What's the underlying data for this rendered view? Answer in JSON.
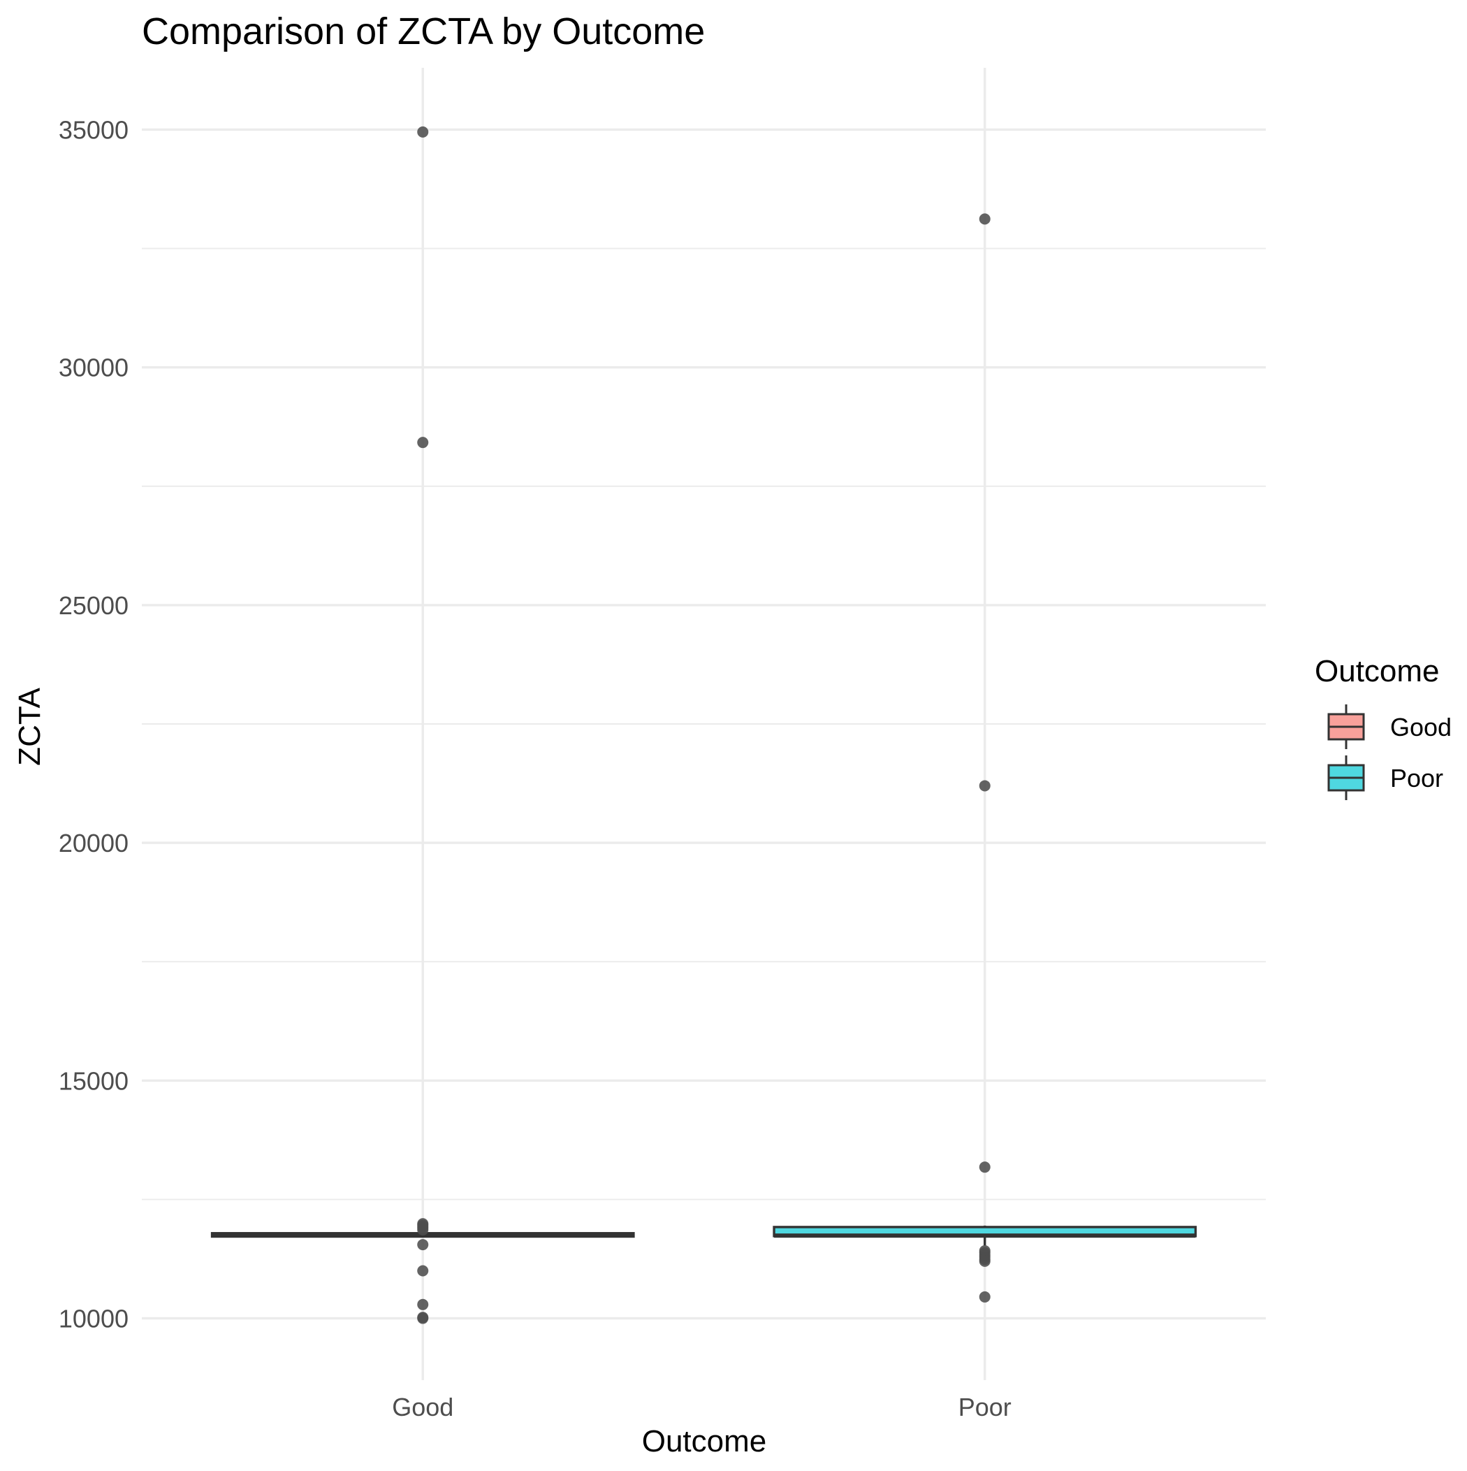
{
  "chart_data": {
    "type": "boxplot",
    "title": "Comparison of ZCTA by Outcome",
    "xlabel": "Outcome",
    "ylabel": "ZCTA",
    "categories": [
      "Good",
      "Poor"
    ],
    "ylim": [
      8700,
      36300
    ],
    "yticks": [
      10000,
      15000,
      20000,
      25000,
      30000,
      35000
    ],
    "yticks_minor": [
      12500,
      17500,
      22500,
      27500,
      32500
    ],
    "grid": true,
    "legend": {
      "title": "Outcome",
      "position": "right",
      "entries": [
        {
          "label": "Good",
          "color": "#f8a19b"
        },
        {
          "label": "Poor",
          "color": "#4fd8e0"
        }
      ]
    },
    "series": [
      {
        "category": "Good",
        "fill": "#f8a19b",
        "q1": 11720,
        "median": 11760,
        "q3": 11790,
        "whisker_low": 11700,
        "whisker_high": 11820,
        "outliers": [
          34950,
          28420,
          11990,
          11960,
          11930,
          11900,
          11860,
          11550,
          11000,
          10290,
          10020,
          10000
        ]
      },
      {
        "category": "Poor",
        "fill": "#4fd8e0",
        "q1": 11730,
        "median": 11740,
        "q3": 11920,
        "whisker_low": 11530,
        "whisker_high": 11950,
        "outliers": [
          33120,
          21200,
          13180,
          11420,
          11380,
          11330,
          11290,
          11240,
          11200,
          10450
        ]
      }
    ]
  },
  "colors": {
    "background": "#ffffff",
    "grid": "#ebebeb",
    "box_outline": "#333333",
    "outlier": "#4d4d4d"
  }
}
